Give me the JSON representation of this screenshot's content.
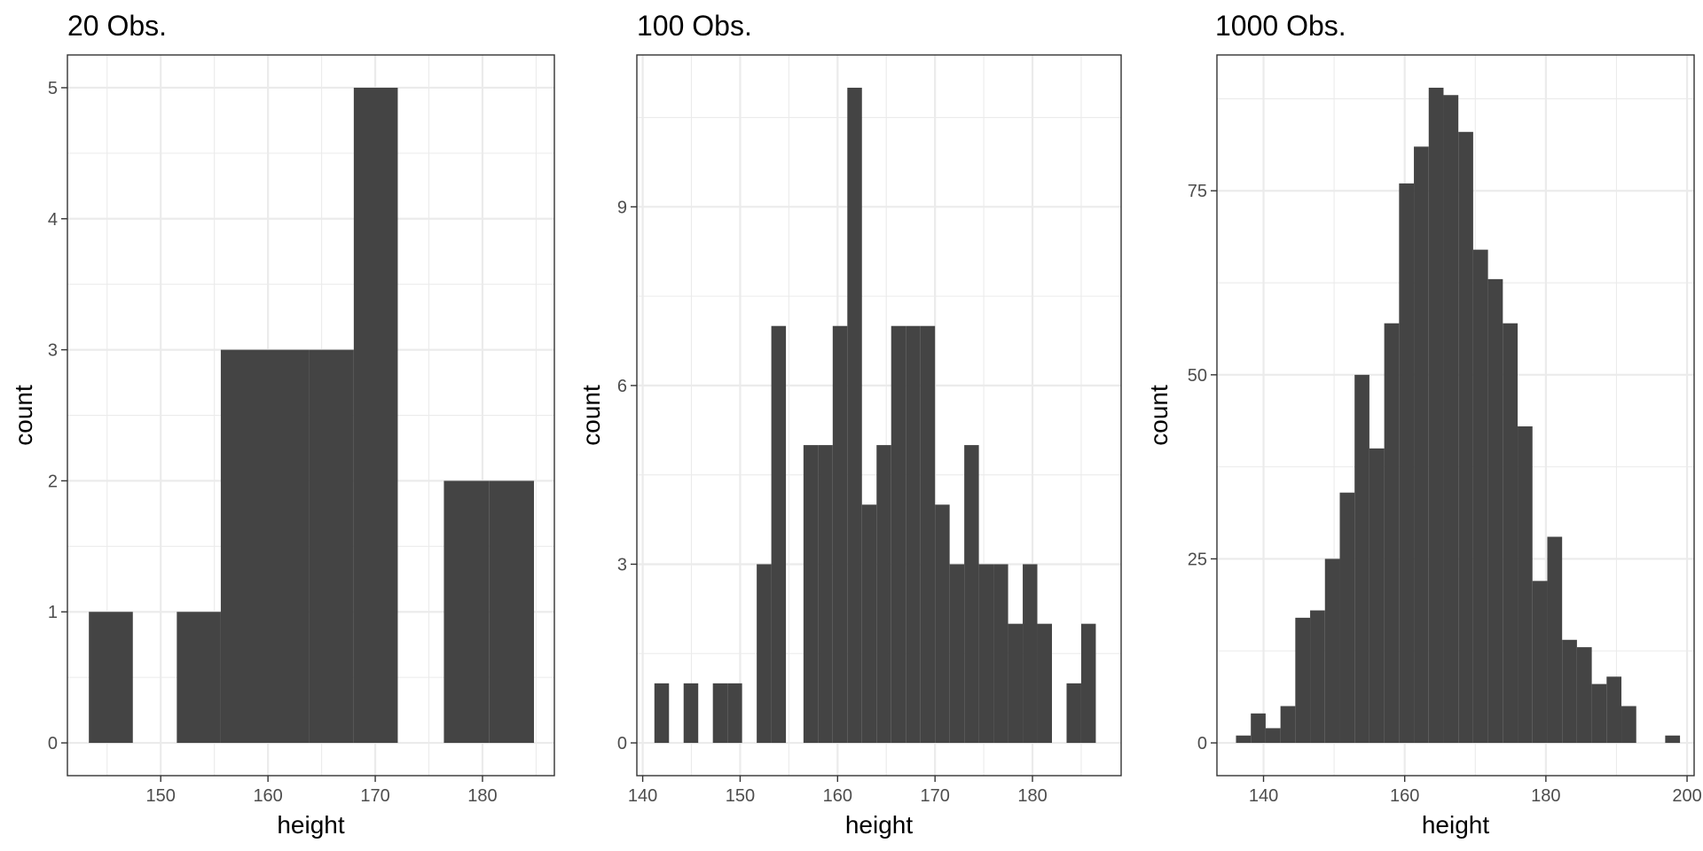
{
  "colors": {
    "bar": "#444444",
    "grid": "#ebebeb",
    "border": "#333333",
    "tick_text": "#4d4d4d"
  },
  "chart_data": [
    {
      "type": "bar",
      "title": "20 Obs.",
      "xlabel": "height",
      "ylabel": "count",
      "xlim": [
        141.3,
        186.7
      ],
      "ylim": [
        -0.25,
        5.25
      ],
      "xticks": [
        150,
        160,
        170,
        180
      ],
      "yticks": [
        0,
        1,
        2,
        3,
        4,
        5
      ],
      "bins": [
        {
          "x0": 143.3,
          "x1": 147.4,
          "count": 1
        },
        {
          "x0": 151.5,
          "x1": 155.6,
          "count": 1
        },
        {
          "x0": 155.6,
          "x1": 159.7,
          "count": 3
        },
        {
          "x0": 159.7,
          "x1": 163.8,
          "count": 3
        },
        {
          "x0": 163.8,
          "x1": 168.0,
          "count": 3
        },
        {
          "x0": 168.0,
          "x1": 172.1,
          "count": 5
        },
        {
          "x0": 176.4,
          "x1": 180.6,
          "count": 2
        },
        {
          "x0": 180.6,
          "x1": 184.8,
          "count": 2
        }
      ]
    },
    {
      "type": "bar",
      "title": "100 Obs.",
      "xlabel": "height",
      "ylabel": "count",
      "xlim": [
        139.4,
        189.1
      ],
      "ylim": [
        -0.55,
        11.55
      ],
      "xticks": [
        140,
        150,
        160,
        170,
        180
      ],
      "yticks": [
        0,
        3,
        6,
        9
      ],
      "bins": [
        {
          "x0": 141.2,
          "x1": 142.7,
          "count": 1
        },
        {
          "x0": 144.2,
          "x1": 145.7,
          "count": 1
        },
        {
          "x0": 147.2,
          "x1": 148.7,
          "count": 1
        },
        {
          "x0": 148.7,
          "x1": 150.2,
          "count": 1
        },
        {
          "x0": 151.7,
          "x1": 153.2,
          "count": 3
        },
        {
          "x0": 153.2,
          "x1": 154.7,
          "count": 7
        },
        {
          "x0": 156.5,
          "x1": 158.0,
          "count": 5
        },
        {
          "x0": 158.0,
          "x1": 159.5,
          "count": 5
        },
        {
          "x0": 159.5,
          "x1": 161.0,
          "count": 7
        },
        {
          "x0": 161.0,
          "x1": 162.5,
          "count": 11
        },
        {
          "x0": 162.5,
          "x1": 164.0,
          "count": 4
        },
        {
          "x0": 164.0,
          "x1": 165.5,
          "count": 5
        },
        {
          "x0": 165.5,
          "x1": 167.0,
          "count": 7
        },
        {
          "x0": 167.0,
          "x1": 168.5,
          "count": 7
        },
        {
          "x0": 168.5,
          "x1": 170.0,
          "count": 7
        },
        {
          "x0": 170.0,
          "x1": 171.5,
          "count": 4
        },
        {
          "x0": 171.5,
          "x1": 173.0,
          "count": 3
        },
        {
          "x0": 173.0,
          "x1": 174.5,
          "count": 5
        },
        {
          "x0": 174.5,
          "x1": 176.0,
          "count": 3
        },
        {
          "x0": 176.0,
          "x1": 177.5,
          "count": 3
        },
        {
          "x0": 177.5,
          "x1": 179.0,
          "count": 2
        },
        {
          "x0": 179.0,
          "x1": 180.5,
          "count": 3
        },
        {
          "x0": 180.5,
          "x1": 182.0,
          "count": 2
        },
        {
          "x0": 183.5,
          "x1": 185.0,
          "count": 1
        },
        {
          "x0": 185.0,
          "x1": 186.5,
          "count": 2
        }
      ]
    },
    {
      "type": "bar",
      "title": "1000 Obs.",
      "xlabel": "height",
      "ylabel": "count",
      "xlim": [
        133.4,
        201.0
      ],
      "ylim": [
        -4.45,
        93.45
      ],
      "xticks": [
        140,
        160,
        180,
        200
      ],
      "yticks": [
        0,
        25,
        50,
        75
      ],
      "bins": [
        {
          "x0": 136.1,
          "x1": 138.2,
          "count": 1
        },
        {
          "x0": 138.2,
          "x1": 140.3,
          "count": 4
        },
        {
          "x0": 140.3,
          "x1": 142.4,
          "count": 2
        },
        {
          "x0": 142.4,
          "x1": 144.5,
          "count": 5
        },
        {
          "x0": 144.5,
          "x1": 146.6,
          "count": 17
        },
        {
          "x0": 146.6,
          "x1": 148.7,
          "count": 18
        },
        {
          "x0": 148.7,
          "x1": 150.8,
          "count": 25
        },
        {
          "x0": 150.8,
          "x1": 152.9,
          "count": 34
        },
        {
          "x0": 152.9,
          "x1": 155.0,
          "count": 50
        },
        {
          "x0": 155.0,
          "x1": 157.1,
          "count": 40
        },
        {
          "x0": 157.1,
          "x1": 159.2,
          "count": 57
        },
        {
          "x0": 159.2,
          "x1": 161.3,
          "count": 76
        },
        {
          "x0": 161.3,
          "x1": 163.4,
          "count": 81
        },
        {
          "x0": 163.4,
          "x1": 165.5,
          "count": 89
        },
        {
          "x0": 165.5,
          "x1": 167.6,
          "count": 88
        },
        {
          "x0": 167.6,
          "x1": 169.7,
          "count": 83
        },
        {
          "x0": 169.7,
          "x1": 171.8,
          "count": 67
        },
        {
          "x0": 171.8,
          "x1": 173.9,
          "count": 63
        },
        {
          "x0": 173.9,
          "x1": 176.0,
          "count": 57
        },
        {
          "x0": 176.0,
          "x1": 178.1,
          "count": 43
        },
        {
          "x0": 178.1,
          "x1": 180.2,
          "count": 22
        },
        {
          "x0": 180.2,
          "x1": 182.3,
          "count": 28
        },
        {
          "x0": 182.3,
          "x1": 184.4,
          "count": 14
        },
        {
          "x0": 184.4,
          "x1": 186.5,
          "count": 13
        },
        {
          "x0": 186.5,
          "x1": 188.6,
          "count": 8
        },
        {
          "x0": 188.6,
          "x1": 190.7,
          "count": 9
        },
        {
          "x0": 190.7,
          "x1": 192.8,
          "count": 5
        },
        {
          "x0": 196.9,
          "x1": 199.0,
          "count": 1
        }
      ]
    }
  ]
}
